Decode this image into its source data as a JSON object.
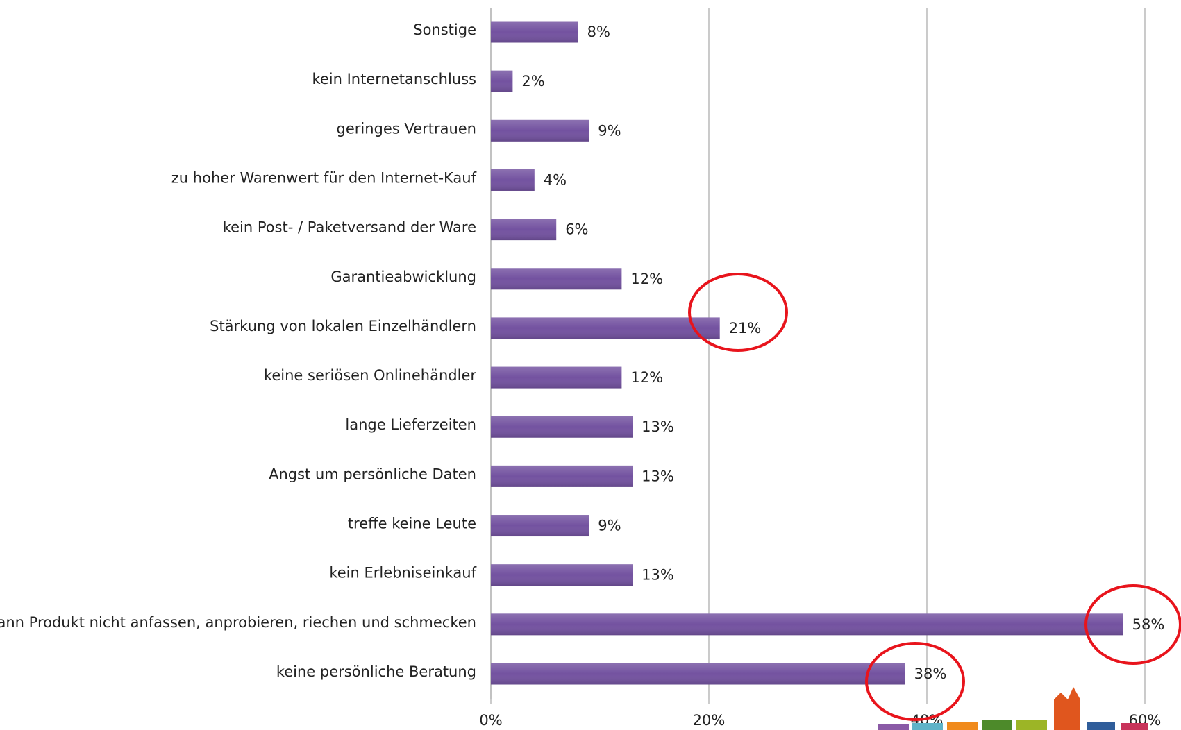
{
  "chart_data": {
    "type": "bar",
    "orientation": "horizontal",
    "categories": [
      "Sonstige",
      "kein Internetanschluss",
      "geringes Vertrauen",
      "zu hoher Warenwert für den Internet-Kauf",
      "kein Post- / Paketversand der Ware",
      "Garantieabwicklung",
      "Stärkung von lokalen Einzelhändlern",
      "keine seriösen Onlinehändler",
      "lange Lieferzeiten",
      "Angst um persönliche Daten",
      "treffe keine Leute",
      "kein Erlebniseinkauf",
      "kann Produkt nicht anfassen, anprobieren, riechen und schmecken",
      "keine persönliche Beratung"
    ],
    "values": [
      8,
      2,
      9,
      4,
      6,
      12,
      21,
      12,
      13,
      13,
      9,
      13,
      58,
      38
    ],
    "value_labels": [
      "8%",
      "2%",
      "9%",
      "4%",
      "6%",
      "12%",
      "21%",
      "12%",
      "13%",
      "13%",
      "9%",
      "13%",
      "58%",
      "38%"
    ],
    "color": "#7352a0",
    "xlim": [
      0,
      60
    ],
    "xticks": [
      {
        "value": 0,
        "label": "0%"
      },
      {
        "value": 20,
        "label": "20%"
      },
      {
        "value": 40,
        "label": "40%"
      },
      {
        "value": 60,
        "label": "60%"
      }
    ],
    "grid": true
  }
}
